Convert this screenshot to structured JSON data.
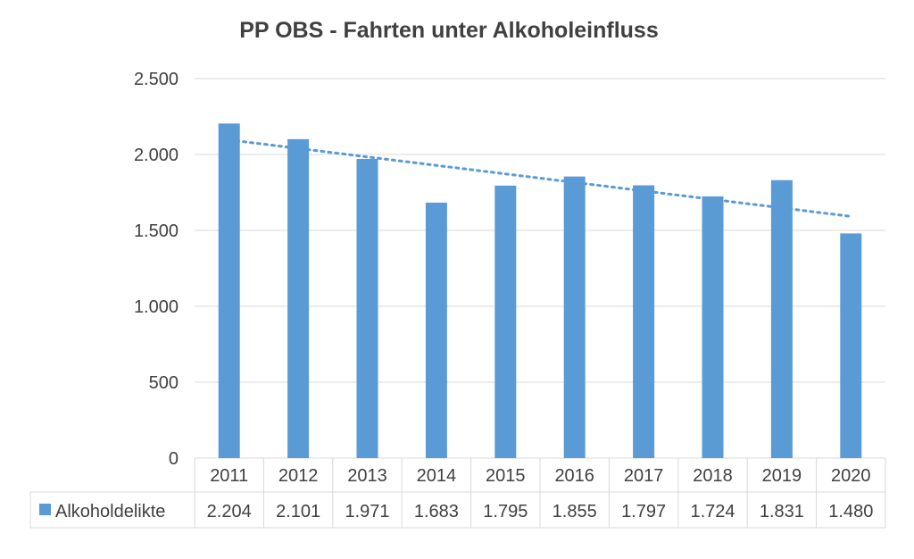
{
  "chart_data": {
    "type": "bar",
    "title": "PP OBS - Fahrten unter Alkoholeinfluss",
    "categories": [
      "2011",
      "2012",
      "2013",
      "2014",
      "2015",
      "2016",
      "2017",
      "2018",
      "2019",
      "2020"
    ],
    "series": [
      {
        "name": "Alkoholdelikte",
        "values": [
          2204,
          2101,
          1971,
          1683,
          1795,
          1855,
          1797,
          1724,
          1831,
          1480
        ],
        "value_labels": [
          "2.204",
          "2.101",
          "1.971",
          "1.683",
          "1.795",
          "1.855",
          "1.797",
          "1.724",
          "1.831",
          "1.480"
        ],
        "color": "#5b9bd5"
      }
    ],
    "trendline": {
      "type": "linear",
      "style": "dotted",
      "color": "#5b9bd5"
    },
    "ylim": [
      0,
      2500
    ],
    "yticks": [
      0,
      500,
      1000,
      1500,
      2000,
      2500
    ],
    "ytick_labels": [
      "0",
      "500",
      "1.000",
      "1.500",
      "2.000",
      "2.500"
    ],
    "grid": true,
    "data_table": true,
    "gridline_color": "#d9d9d9",
    "text_color": "#404040"
  }
}
